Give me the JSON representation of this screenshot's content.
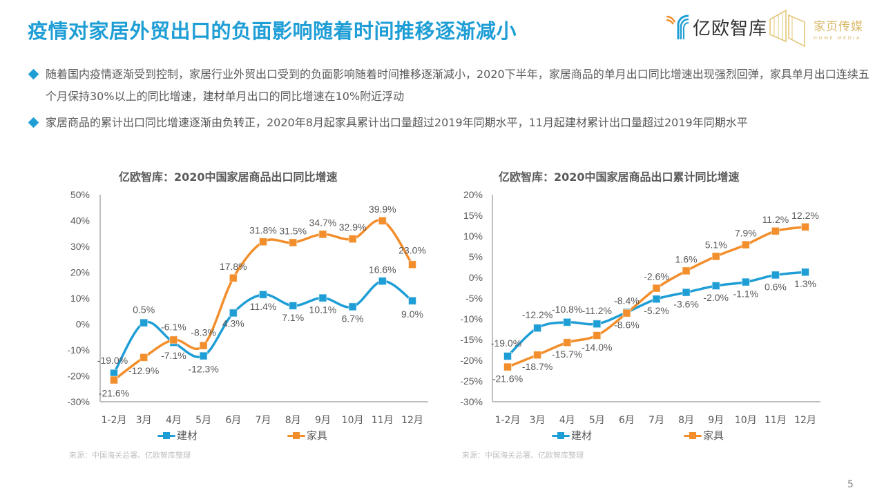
{
  "header": {
    "title": "疫情对家居外贸出口的负面影响随着时间推移逐渐减小",
    "logo_yiou": "亿欧智库",
    "logo_home_cn": "家页传媒",
    "logo_home_en": "HOME MEDIA"
  },
  "bullets": [
    "随着国内疫情逐渐受到控制，家居行业外贸出口受到的负面影响随着时间推移逐渐减小，2020下半年，家居商品的单月出口同比增速出现强烈回弹，家具单月出口连续五个月保持30%以上的同比增速，建材单月出口的同比增速在10%附近浮动",
    "家居商品的累计出口同比增速逐渐由负转正，2020年8月起家具累计出口量超过2019年同期水平，11月起建材累计出口量超过2019年同期水平"
  ],
  "colors": {
    "title": "#1f9ed6",
    "jiancai": "#1f9ed6",
    "jiaju": "#f28e2b",
    "axis": "#bfbfbf",
    "text": "#595959"
  },
  "page_number": "5",
  "chart_data": [
    {
      "type": "line",
      "title": "亿欧智库：2020中国家居商品出口同比增速",
      "categories": [
        "1-2月",
        "3月",
        "4月",
        "5月",
        "6月",
        "7月",
        "8月",
        "9月",
        "10月",
        "11月",
        "12月"
      ],
      "series": [
        {
          "name": "建材",
          "values": [
            -19.0,
            0.5,
            -7.1,
            -12.3,
            4.3,
            11.4,
            7.1,
            10.1,
            6.7,
            16.6,
            9.0
          ],
          "labels": [
            "-19.0%",
            "0.5%",
            "-7.1%",
            "-12.3%",
            "4.3%",
            "11.4%",
            "7.1%",
            "10.1%",
            "6.7%",
            "16.6%",
            "9.0%"
          ]
        },
        {
          "name": "家具",
          "values": [
            -21.6,
            -12.9,
            -6.1,
            -8.3,
            17.8,
            31.8,
            31.5,
            34.7,
            32.9,
            39.9,
            23.0
          ],
          "labels": [
            "-21.6%",
            "-12.9%",
            "-6.1%",
            "-8.3%",
            "17.8%",
            "31.8%",
            "31.5%",
            "34.7%",
            "32.9%",
            "39.9%",
            "23.0%"
          ]
        }
      ],
      "yticks": [
        "50%",
        "40%",
        "30%",
        "20%",
        "10%",
        "0%",
        "-10%",
        "-20%",
        "-30%"
      ],
      "ylim": [
        -30,
        50
      ],
      "smooth": true,
      "xlabel": "",
      "ylabel": "",
      "legend": "bottom",
      "grid": false,
      "source": "来源：中国海关总署、亿欧智库整理"
    },
    {
      "type": "line",
      "title": "亿欧智库：2020中国家居商品出口累计同比增速",
      "categories": [
        "1-2月",
        "3月",
        "4月",
        "5月",
        "6月",
        "7月",
        "8月",
        "9月",
        "10月",
        "11月",
        "12月"
      ],
      "series": [
        {
          "name": "建材",
          "values": [
            -19.0,
            -12.2,
            -10.8,
            -11.2,
            -8.4,
            -5.2,
            -3.6,
            -2.0,
            -1.1,
            0.6,
            1.3
          ],
          "labels": [
            "-19.0%",
            "-12.2%",
            "-10.8%",
            "-11.2%",
            "-8.4%",
            "-5.2%",
            "-3.6%",
            "-2.0%",
            "-1.1%",
            "0.6%",
            "1.3%"
          ]
        },
        {
          "name": "家具",
          "values": [
            -21.6,
            -18.7,
            -15.7,
            -14.0,
            -8.6,
            -2.6,
            1.6,
            5.1,
            7.9,
            11.2,
            12.2
          ],
          "labels": [
            "-21.6%",
            "-18.7%",
            "-15.7%",
            "-14.0%",
            "-8.6%",
            "-2.6%",
            "1.6%",
            "5.1%",
            "7.9%",
            "11.2%",
            "12.2%"
          ]
        }
      ],
      "yticks": [
        "20%",
        "15%",
        "10%",
        "5%",
        "0%",
        "-5%",
        "-10%",
        "-15%",
        "-20%",
        "-25%",
        "-30%"
      ],
      "ylim": [
        -30,
        20
      ],
      "smooth": true,
      "xlabel": "",
      "ylabel": "",
      "legend": "bottom",
      "grid": false,
      "source": "来源：中国海关总署、亿欧智库整理"
    }
  ]
}
